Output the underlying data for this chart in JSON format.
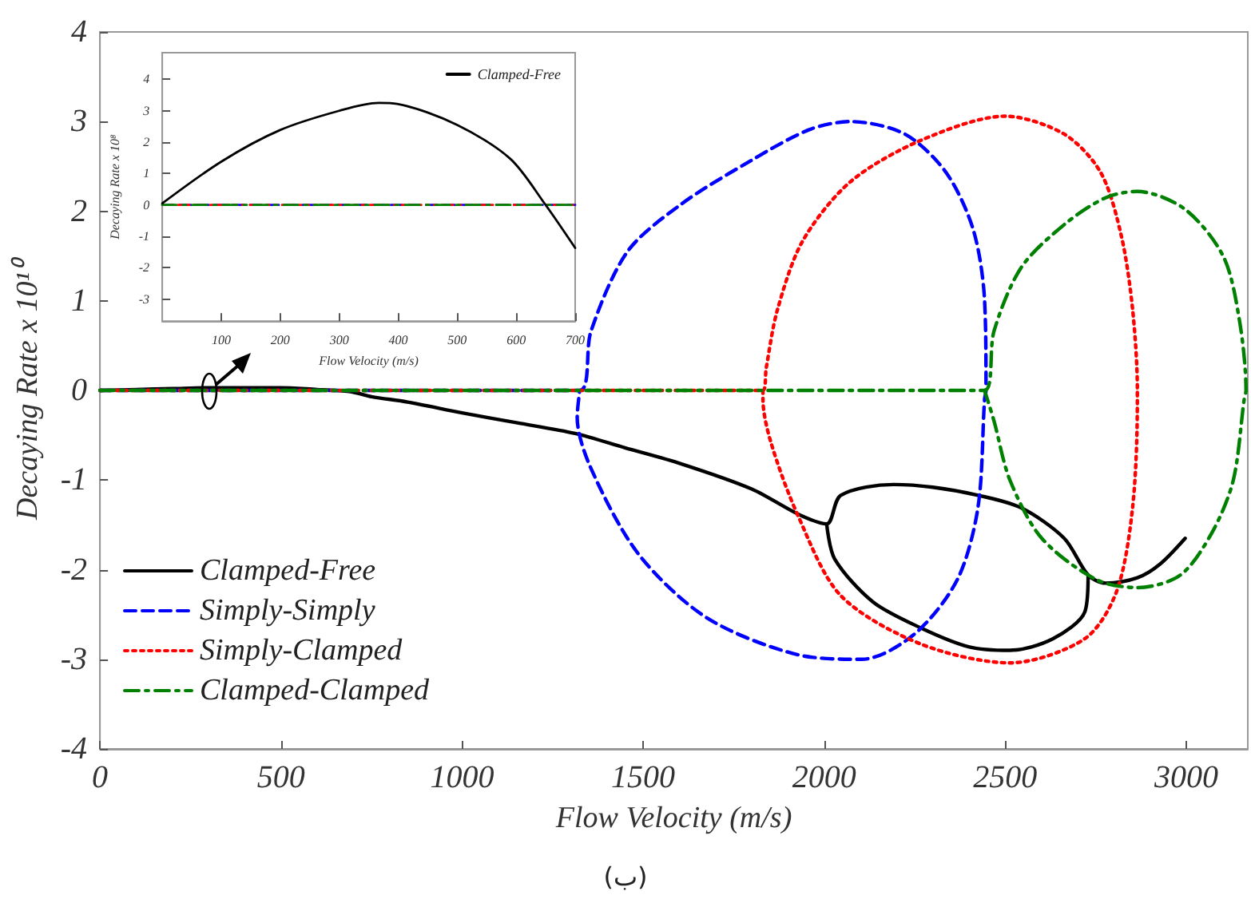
{
  "chart_data": [
    {
      "type": "line",
      "xlabel": "Flow Velocity (m/s)",
      "ylabel": "Decaying Rate x 10¹⁰",
      "xlim": [
        0,
        3170
      ],
      "ylim": [
        -4,
        4
      ],
      "xticks": [
        0,
        500,
        1000,
        1500,
        2000,
        2500,
        3000
      ],
      "yticks": [
        -4,
        -3,
        -2,
        -1,
        0,
        1,
        2,
        3,
        4
      ],
      "grid": false,
      "legend": "bottom left",
      "annotations": [
        "(ب)"
      ],
      "series": [
        {
          "name": "Clamped-Free",
          "color": "#000000",
          "line_style": "solid",
          "x": [
            0,
            100,
            200,
            300,
            375,
            500,
            600,
            650,
            700,
            750,
            850,
            1000,
            1150,
            1312,
            1450,
            1606,
            1800,
            1928,
            2007,
            2046,
            2192,
            2300,
            2425,
            2544,
            2663,
            2729,
            2777,
            2865,
            2927,
            2997,
            null,
            2007,
            2029,
            2135,
            2267,
            2399,
            2513,
            2632,
            2720,
            2729
          ],
          "values": [
            0,
            0.01,
            0.02,
            0.03,
            0.03,
            0.03,
            0.01,
            0,
            -0.02,
            -0.07,
            -0.13,
            -0.25,
            -0.36,
            -0.48,
            -0.64,
            -0.82,
            -1.1,
            -1.38,
            -1.49,
            -1.17,
            -1.05,
            -1.08,
            -1.17,
            -1.31,
            -1.65,
            -2.06,
            -2.15,
            -2.09,
            -1.94,
            -1.65,
            null,
            -1.49,
            -1.88,
            -2.36,
            -2.65,
            -2.86,
            -2.9,
            -2.77,
            -2.47,
            -2.06
          ]
        },
        {
          "name": "Simply-Simply",
          "color": "#0000ff",
          "line_style": "dashed",
          "x": [
            0,
            1325,
            1356,
            1457,
            1606,
            1796,
            1959,
            2073,
            2223,
            2337,
            2412,
            2443,
            2447,
            2443,
            2425,
            2368,
            2249,
            2104,
            1928,
            1677,
            1488,
            1356,
            1318,
            1325
          ],
          "values": [
            0,
            0,
            0.66,
            1.55,
            2.08,
            2.56,
            2.91,
            3.0,
            2.86,
            2.43,
            1.79,
            1.01,
            0,
            -0.1,
            -1.3,
            -2.11,
            -2.72,
            -3.0,
            -2.95,
            -2.54,
            -1.83,
            -0.87,
            -0.3,
            0
          ]
        },
        {
          "name": "Simply-Clamped",
          "color": "#ff0000",
          "line_style": "dotted",
          "x": [
            0,
            1831,
            1840,
            1871,
            1941,
            2073,
            2267,
            2500,
            2663,
            2764,
            2821,
            2852,
            2865,
            2865,
            2852,
            2808,
            2720,
            2513,
            2267,
            2046,
            1928,
            1853,
            1831,
            1831
          ],
          "values": [
            0,
            0,
            0.25,
            0.9,
            1.67,
            2.33,
            2.79,
            3.06,
            2.86,
            2.43,
            1.72,
            0.9,
            0,
            -0.1,
            -1.3,
            -2.24,
            -2.77,
            -3.04,
            -2.83,
            -2.29,
            -1.4,
            -0.58,
            -0.1,
            0
          ]
        },
        {
          "name": "Clamped-Clamped",
          "color": "#008000",
          "line_style": "dashdot",
          "x": [
            0,
            2443,
            2469,
            2544,
            2663,
            2777,
            2865,
            2997,
            3103,
            3147,
            3165,
            3160,
            3130,
            3072,
            2984,
            2865,
            2751,
            2601,
            2513,
            2469,
            2443
          ],
          "values": [
            0,
            0,
            0.66,
            1.37,
            1.85,
            2.15,
            2.22,
            2.02,
            1.49,
            0.78,
            0,
            -0.1,
            -1.0,
            -1.58,
            -2.06,
            -2.2,
            -2.11,
            -1.65,
            -1.0,
            -0.34,
            0
          ]
        }
      ]
    },
    {
      "type": "line",
      "xlabel": "Flow Velocity (m/s)",
      "ylabel": "Decaying Rate x 10⁸",
      "xlim": [
        0,
        700
      ],
      "ylim": [
        -3.7,
        4.85
      ],
      "xticks": [
        100,
        200,
        300,
        400,
        500,
        600,
        700
      ],
      "yticks": [
        -3,
        -2,
        -1,
        0,
        1,
        2,
        3,
        4
      ],
      "grid": false,
      "legend": "top right",
      "series": [
        {
          "color": "#0000ff",
          "line_style": "dashed",
          "x": [
            0,
            700
          ],
          "values": [
            0,
            0
          ]
        },
        {
          "color": "#ff0000",
          "line_style": "dotted",
          "x": [
            0,
            700
          ],
          "values": [
            0,
            0
          ]
        },
        {
          "color": "#008000",
          "line_style": "dashdot",
          "x": [
            0,
            700
          ],
          "values": [
            0,
            0
          ]
        },
        {
          "name": "Clamped-Free",
          "color": "#000000",
          "line_style": "solid",
          "x": [
            0,
            100,
            199,
            300,
            367,
            398,
            500,
            590,
            648,
            700
          ],
          "values": [
            0.05,
            1.38,
            2.38,
            3.0,
            3.25,
            3.22,
            2.55,
            1.47,
            0.05,
            -1.37
          ]
        }
      ]
    }
  ]
}
